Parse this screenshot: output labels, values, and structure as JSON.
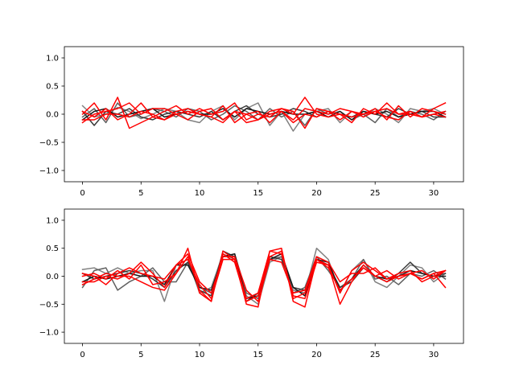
{
  "chart_data": [
    {
      "type": "line",
      "title": "",
      "xlabel": "",
      "ylabel": "",
      "xlim": [
        -1.55,
        32.55
      ],
      "ylim": [
        -1.2,
        1.2
      ],
      "xticks": [
        0,
        5,
        10,
        15,
        20,
        25,
        30
      ],
      "yticks": [
        -1.0,
        -0.5,
        0.0,
        0.5,
        1.0
      ],
      "xtick_labels": [
        "0",
        "5",
        "10",
        "15",
        "20",
        "25",
        "30"
      ],
      "ytick_labels": [
        "−1.0",
        "−0.5",
        "0.0",
        "0.5",
        "1.0"
      ],
      "grid": false,
      "x": [
        0,
        1,
        2,
        3,
        4,
        5,
        6,
        7,
        8,
        9,
        10,
        11,
        12,
        13,
        14,
        15,
        16,
        17,
        18,
        19,
        20,
        21,
        22,
        23,
        24,
        25,
        26,
        27,
        28,
        29,
        30,
        31
      ],
      "series": [
        {
          "color": "#808080",
          "values": [
            0.15,
            -0.05,
            0.0,
            0.12,
            0.05,
            -0.08,
            0.0,
            0.1,
            0.05,
            -0.1,
            -0.15,
            0.05,
            0.15,
            -0.1,
            0.1,
            0.2,
            -0.2,
            0.05,
            -0.3,
            0.0,
            0.05,
            0.1,
            -0.15,
            0.05,
            -0.05,
            0.1,
            0.0,
            -0.15,
            0.1,
            0.05,
            0.1,
            0.0
          ]
        },
        {
          "color": "#606060",
          "values": [
            -0.05,
            0.1,
            -0.15,
            0.2,
            -0.05,
            0.0,
            0.1,
            0.05,
            -0.05,
            0.1,
            0.05,
            -0.1,
            0.0,
            0.15,
            0.05,
            -0.1,
            0.1,
            -0.05,
            0.05,
            -0.2,
            0.1,
            0.0,
            0.05,
            -0.1,
            0.0,
            -0.15,
            0.1,
            -0.05,
            0.05,
            0.0,
            -0.1,
            0.05
          ]
        },
        {
          "color": "#3a3a3a",
          "values": [
            0.05,
            -0.2,
            0.05,
            0.0,
            0.1,
            -0.05,
            -0.1,
            0.0,
            0.05,
            0.0,
            -0.05,
            0.05,
            -0.1,
            0.05,
            0.15,
            0.0,
            -0.05,
            0.0,
            0.1,
            0.05,
            -0.05,
            0.05,
            0.0,
            -0.05,
            0.05,
            0.0,
            -0.05,
            0.1,
            0.0,
            0.05,
            -0.05,
            -0.05
          ]
        },
        {
          "color": "#1a1a1a",
          "values": [
            -0.1,
            0.05,
            0.1,
            -0.05,
            0.0,
            0.05,
            0.1,
            -0.05,
            0.0,
            0.05,
            0.0,
            0.0,
            0.1,
            -0.05,
            0.1,
            0.05,
            0.0,
            0.05,
            0.0,
            0.0,
            0.05,
            -0.05,
            0.05,
            -0.1,
            0.05,
            0.0,
            0.05,
            -0.05,
            0.0,
            0.05,
            0.05,
            -0.05
          ]
        },
        {
          "color": "#ff0000",
          "values": [
            0.0,
            0.2,
            -0.1,
            0.3,
            -0.25,
            -0.15,
            -0.05,
            0.05,
            0.15,
            0.0,
            0.1,
            0.0,
            0.05,
            0.2,
            -0.1,
            0.0,
            -0.05,
            0.1,
            0.0,
            0.3,
            0.0,
            -0.05,
            0.0,
            -0.15,
            0.1,
            0.0,
            0.2,
            0.0,
            0.0,
            -0.05,
            0.1,
            0.2
          ]
        },
        {
          "color": "#ff0000",
          "values": [
            -0.15,
            0.0,
            0.05,
            0.1,
            0.2,
            0.0,
            0.1,
            0.1,
            0.0,
            -0.1,
            0.05,
            0.1,
            -0.1,
            0.05,
            0.0,
            0.05,
            -0.15,
            0.05,
            -0.1,
            0.1,
            0.05,
            0.0,
            0.1,
            0.05,
            -0.05,
            0.05,
            0.1,
            0.0,
            0.05,
            -0.05,
            0.0,
            -0.05
          ]
        },
        {
          "color": "#ff0000",
          "values": [
            0.05,
            -0.05,
            0.1,
            -0.1,
            0.0,
            0.2,
            -0.05,
            -0.1,
            0.05,
            0.1,
            0.0,
            -0.05,
            0.15,
            -0.15,
            0.0,
            -0.1,
            0.05,
            0.1,
            0.05,
            -0.25,
            0.1,
            0.05,
            -0.1,
            0.05,
            0.0,
            0.1,
            -0.1,
            0.15,
            -0.05,
            0.1,
            0.05,
            0.0
          ]
        },
        {
          "color": "#ff0000",
          "values": [
            -0.1,
            -0.1,
            0.0,
            0.0,
            -0.05,
            0.05,
            0.0,
            -0.1,
            0.0,
            0.05,
            0.0,
            -0.05,
            -0.15,
            0.05,
            -0.15,
            -0.1,
            0.0,
            0.05,
            -0.15,
            0.0,
            -0.05,
            0.05,
            0.0,
            -0.05,
            0.0,
            0.05,
            -0.05,
            -0.1,
            0.05,
            -0.05,
            0.0,
            0.05
          ]
        }
      ]
    },
    {
      "type": "line",
      "title": "",
      "xlabel": "",
      "ylabel": "",
      "xlim": [
        -1.55,
        32.55
      ],
      "ylim": [
        -1.2,
        1.2
      ],
      "xticks": [
        0,
        5,
        10,
        15,
        20,
        25,
        30
      ],
      "yticks": [
        -1.0,
        -0.5,
        0.0,
        0.5,
        1.0
      ],
      "xtick_labels": [
        "0",
        "5",
        "10",
        "15",
        "20",
        "25",
        "30"
      ],
      "ytick_labels": [
        "−1.0",
        "−0.5",
        "0.0",
        "0.5",
        "1.0"
      ],
      "grid": false,
      "x": [
        0,
        1,
        2,
        3,
        4,
        5,
        6,
        7,
        8,
        9,
        10,
        11,
        12,
        13,
        14,
        15,
        16,
        17,
        18,
        19,
        20,
        21,
        22,
        23,
        24,
        25,
        26,
        27,
        28,
        29,
        30,
        31
      ],
      "series": [
        {
          "color": "#808080",
          "values": [
            0.12,
            0.15,
            0.05,
            0.15,
            0.05,
            0.1,
            0.1,
            -0.45,
            0.2,
            0.3,
            -0.3,
            -0.2,
            0.4,
            0.3,
            -0.35,
            -0.5,
            0.25,
            0.35,
            -0.25,
            -0.3,
            0.5,
            0.3,
            -0.3,
            0.1,
            0.3,
            -0.1,
            -0.2,
            0.0,
            0.2,
            0.15,
            -0.1,
            0.05
          ]
        },
        {
          "color": "#606060",
          "values": [
            -0.2,
            0.1,
            0.15,
            -0.25,
            -0.1,
            0.0,
            0.15,
            -0.1,
            -0.1,
            0.25,
            -0.2,
            -0.3,
            0.35,
            0.4,
            -0.3,
            -0.4,
            0.3,
            0.35,
            -0.3,
            -0.2,
            0.35,
            0.1,
            -0.2,
            -0.05,
            0.3,
            -0.05,
            0.0,
            -0.15,
            0.05,
            0.0,
            0.1,
            -0.05
          ]
        },
        {
          "color": "#3a3a3a",
          "values": [
            0.05,
            -0.05,
            0.0,
            0.05,
            0.1,
            0.05,
            -0.05,
            -0.2,
            0.1,
            0.25,
            -0.25,
            -0.35,
            0.45,
            0.35,
            -0.45,
            -0.3,
            0.35,
            0.3,
            -0.2,
            -0.25,
            0.3,
            0.2,
            -0.2,
            -0.1,
            0.15,
            0.0,
            -0.1,
            0.05,
            0.25,
            0.05,
            0.0,
            0.05
          ]
        },
        {
          "color": "#1a1a1a",
          "values": [
            -0.1,
            0.0,
            -0.05,
            0.0,
            0.05,
            0.0,
            0.0,
            -0.15,
            0.2,
            0.2,
            -0.2,
            -0.25,
            0.35,
            0.4,
            -0.4,
            -0.35,
            0.3,
            0.4,
            -0.2,
            -0.35,
            0.3,
            0.25,
            -0.25,
            -0.05,
            0.2,
            0.0,
            -0.05,
            0.0,
            0.1,
            0.05,
            0.0,
            0.0
          ]
        },
        {
          "color": "#ff0000",
          "values": [
            0.0,
            0.05,
            -0.05,
            0.1,
            -0.05,
            0.2,
            -0.15,
            -0.1,
            0.05,
            0.5,
            -0.3,
            -0.45,
            0.45,
            0.3,
            -0.5,
            -0.55,
            0.45,
            0.5,
            -0.45,
            -0.55,
            0.3,
            0.2,
            -0.5,
            -0.1,
            0.2,
            0.0,
            -0.1,
            0.0,
            0.05,
            -0.05,
            0.05,
            -0.2
          ]
        },
        {
          "color": "#ff0000",
          "values": [
            -0.1,
            -0.1,
            0.0,
            -0.05,
            0.05,
            0.25,
            0.05,
            -0.2,
            0.2,
            0.3,
            -0.15,
            -0.4,
            0.3,
            0.3,
            -0.4,
            -0.3,
            0.45,
            0.4,
            -0.35,
            -0.4,
            0.25,
            0.2,
            -0.3,
            0.1,
            0.25,
            0.1,
            -0.05,
            0.0,
            0.05,
            0.1,
            -0.05,
            0.1
          ]
        },
        {
          "color": "#ff0000",
          "values": [
            0.05,
            0.0,
            -0.15,
            0.05,
            0.15,
            0.05,
            0.0,
            -0.05,
            0.2,
            0.4,
            -0.1,
            -0.3,
            0.35,
            0.35,
            -0.25,
            -0.45,
            0.3,
            0.25,
            -0.3,
            -0.25,
            0.35,
            0.25,
            -0.1,
            0.05,
            0.05,
            0.15,
            -0.05,
            0.05,
            0.1,
            -0.1,
            0.0,
            0.1
          ]
        },
        {
          "color": "#ff0000",
          "values": [
            -0.15,
            -0.05,
            0.05,
            0.0,
            0.0,
            -0.1,
            -0.2,
            -0.25,
            0.05,
            0.35,
            -0.25,
            -0.45,
            0.4,
            0.25,
            -0.45,
            -0.35,
            0.35,
            0.45,
            -0.4,
            -0.3,
            0.3,
            0.15,
            -0.25,
            -0.05,
            0.15,
            0.0,
            0.1,
            -0.05,
            0.05,
            -0.05,
            0.05,
            0.1
          ]
        }
      ]
    }
  ]
}
